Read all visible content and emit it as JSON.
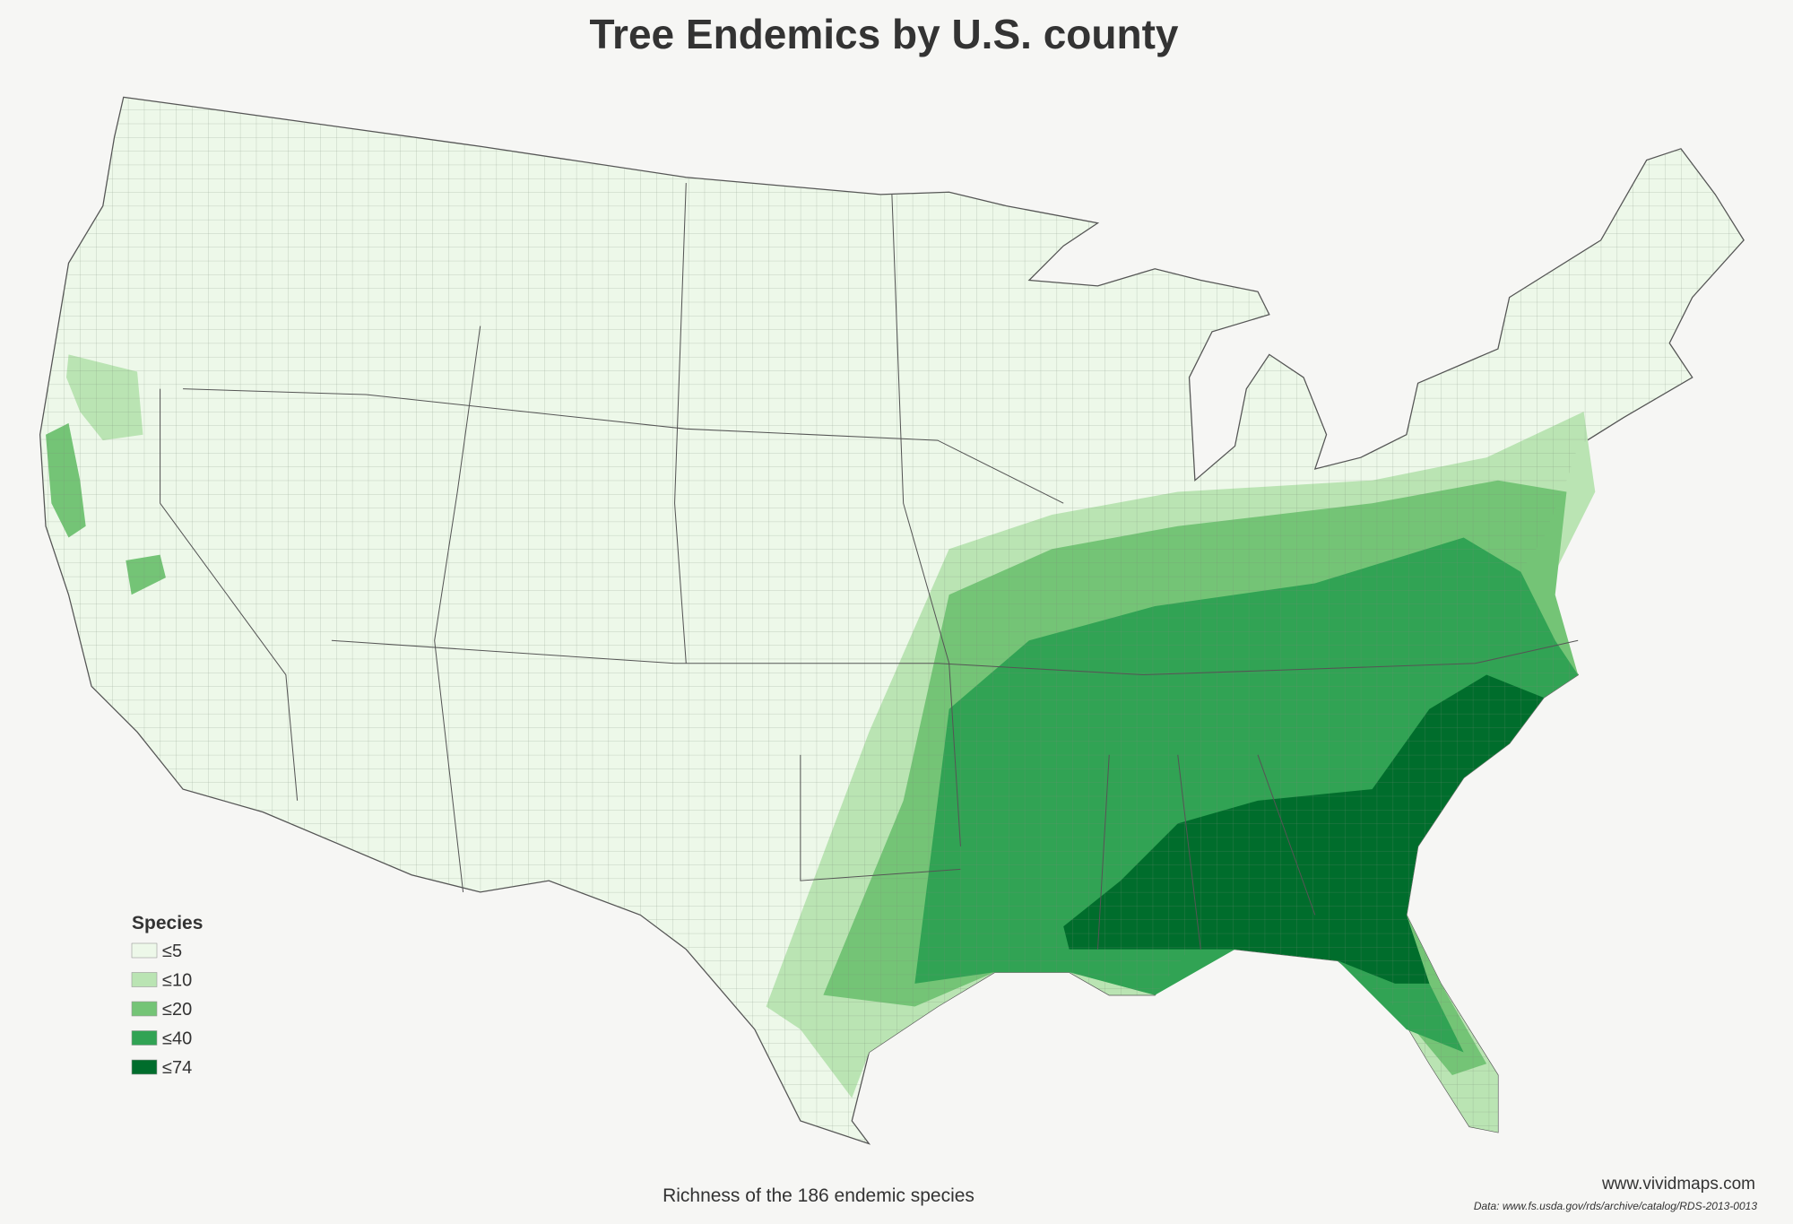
{
  "header": {
    "title": "Tree Endemics by U.S. county"
  },
  "legend": {
    "title": "Species",
    "items": [
      {
        "label": "≤5",
        "color": "#edf8e9"
      },
      {
        "label": "≤10",
        "color": "#bae4b3"
      },
      {
        "label": "≤20",
        "color": "#74c476"
      },
      {
        "label": "≤40",
        "color": "#31a354"
      },
      {
        "label": "≤74",
        "color": "#006d2c"
      }
    ]
  },
  "footer": {
    "subtitle": "Richness of the 186 endemic species",
    "site": "www.vividmaps.com",
    "source": "Data: www.fs.usda.gov/rds/archive/catalog/RDS-2013-0013"
  }
}
